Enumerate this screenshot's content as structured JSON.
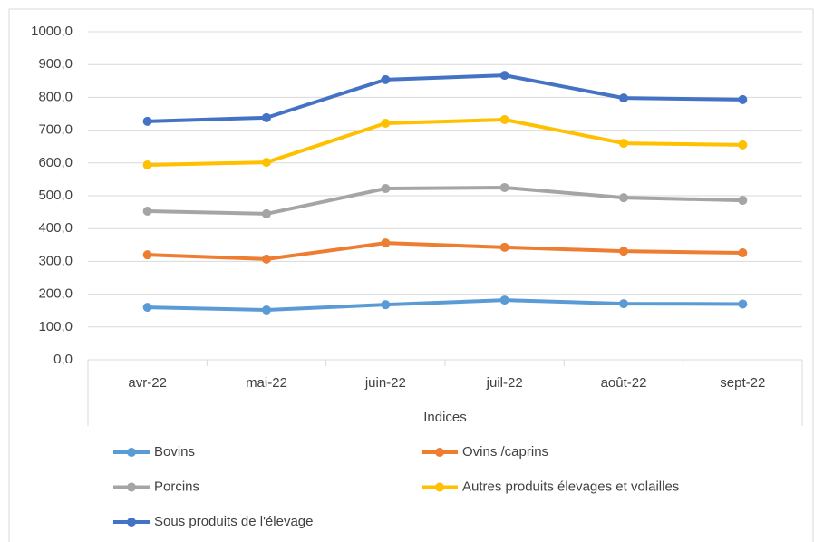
{
  "chart_data": {
    "type": "line",
    "x_label": "Indices",
    "categories": [
      "avr-22",
      "mai-22",
      "juin-22",
      "juil-22",
      "août-22",
      "sept-22"
    ],
    "series": [
      {
        "name": "Bovins",
        "color": "#5b9bd5",
        "values": [
          160,
          152,
          168,
          182,
          171,
          170
        ]
      },
      {
        "name": "Ovins /caprins",
        "color": "#ed7d31",
        "values": [
          320,
          307,
          356,
          343,
          331,
          326
        ]
      },
      {
        "name": "Porcins",
        "color": "#a5a5a5",
        "values": [
          453,
          445,
          522,
          525,
          494,
          486
        ]
      },
      {
        "name": "Autres produits élevages et volailles",
        "color": "#ffc000",
        "values": [
          594,
          602,
          721,
          732,
          660,
          655
        ]
      },
      {
        "name": "Sous produits de l'élevage",
        "color": "#4472c4",
        "values": [
          727,
          738,
          854,
          867,
          798,
          793
        ]
      }
    ],
    "ylim": [
      0,
      1000
    ],
    "yticks": [
      {
        "value": 0,
        "label": "0,0"
      },
      {
        "value": 100,
        "label": "100,0"
      },
      {
        "value": 200,
        "label": "200,0"
      },
      {
        "value": 300,
        "label": "300,0"
      },
      {
        "value": 400,
        "label": "400,0"
      },
      {
        "value": 500,
        "label": "500,0"
      },
      {
        "value": 600,
        "label": "600,0"
      },
      {
        "value": 700,
        "label": "700,0"
      },
      {
        "value": 800,
        "label": "800,0"
      },
      {
        "value": 900,
        "label": "900,0"
      },
      {
        "value": 1000,
        "label": "1000,0"
      }
    ],
    "grid": true,
    "legend": "bottom"
  }
}
